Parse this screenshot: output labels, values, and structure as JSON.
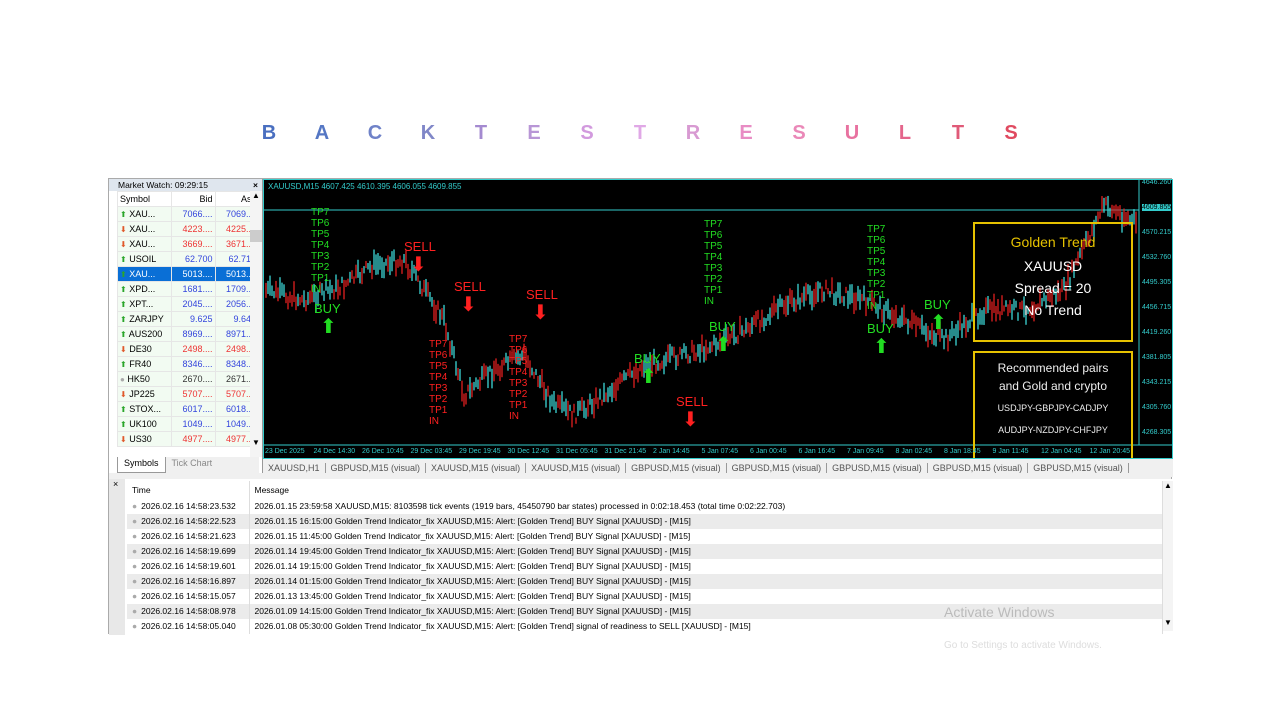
{
  "title": {
    "letters": [
      "B",
      "A",
      "C",
      "K",
      "T",
      "E",
      "S",
      "T",
      "R",
      "E",
      "S",
      "U",
      "L",
      "T",
      "S"
    ],
    "colors": [
      "#4a6fc0",
      "#5577c4",
      "#6f82c8",
      "#8087c8",
      "#a48ad0",
      "#b896d6",
      "#d29ade",
      "#e0a8e6",
      "#d89ad2",
      "#e88cc4",
      "#ea88b8",
      "#e872a0",
      "#e4668c",
      "#e05a78",
      "#e04a60"
    ]
  },
  "market_watch": {
    "title": "Market Watch: 09:29:15",
    "close": "×",
    "headers": [
      "Symbol",
      "Bid",
      "Ask"
    ],
    "rows": [
      {
        "symbol": "XAU...",
        "bid": "7066....",
        "ask": "7069....",
        "dir": "up",
        "color": "blue"
      },
      {
        "symbol": "XAU...",
        "bid": "4223....",
        "ask": "4225....",
        "dir": "dn",
        "color": "red"
      },
      {
        "symbol": "XAU...",
        "bid": "3669....",
        "ask": "3671....",
        "dir": "dn",
        "color": "red"
      },
      {
        "symbol": "USOIL",
        "bid": "62.700",
        "ask": "62.713",
        "dir": "up",
        "color": "blue"
      },
      {
        "symbol": "XAU...",
        "bid": "5013....",
        "ask": "5013....",
        "dir": "up",
        "color": "blue",
        "selected": true
      },
      {
        "symbol": "XPD...",
        "bid": "1681....",
        "ask": "1709....",
        "dir": "up",
        "color": "blue"
      },
      {
        "symbol": "XPT...",
        "bid": "2045....",
        "ask": "2056....",
        "dir": "up",
        "color": "blue"
      },
      {
        "symbol": "ZARJPY",
        "bid": "9.625",
        "ask": "9.643",
        "dir": "up",
        "color": "blue"
      },
      {
        "symbol": "AUS200",
        "bid": "8969....",
        "ask": "8971....",
        "dir": "up",
        "color": "blue"
      },
      {
        "symbol": "DE30",
        "bid": "2498....",
        "ask": "2498....",
        "dir": "dn",
        "color": "red"
      },
      {
        "symbol": "FR40",
        "bid": "8346....",
        "ask": "8348....",
        "dir": "up",
        "color": "blue"
      },
      {
        "symbol": "HK50",
        "bid": "2670....",
        "ask": "2671....",
        "dir": "nt",
        "color": "blk"
      },
      {
        "symbol": "JP225",
        "bid": "5707....",
        "ask": "5707....",
        "dir": "dn",
        "color": "red"
      },
      {
        "symbol": "STOX...",
        "bid": "6017....",
        "ask": "6018....",
        "dir": "up",
        "color": "blue"
      },
      {
        "symbol": "UK100",
        "bid": "1049....",
        "ask": "1049....",
        "dir": "up",
        "color": "blue"
      },
      {
        "symbol": "US30",
        "bid": "4977....",
        "ask": "4977....",
        "dir": "dn",
        "color": "red"
      }
    ],
    "tabs": [
      "Symbols",
      "Tick Chart"
    ]
  },
  "chart": {
    "header": "XAUUSD,M15  4607.425 4610.395 4606.055 4609.855",
    "price_axis": [
      "4646.260",
      "4609.855",
      "4570.215",
      "4532.760",
      "4495.305",
      "4456.715",
      "4419.260",
      "4381.805",
      "4343.215",
      "4305.760",
      "4268.305"
    ],
    "current_price": "4609.855",
    "time_axis": [
      "23 Dec 2025",
      "24 Dec 14:30",
      "26 Dec 10:45",
      "29 Dec 03:45",
      "29 Dec 19:45",
      "30 Dec 12:45",
      "31 Dec 05:45",
      "31 Dec 21:45",
      "2 Jan 14:45",
      "5 Jan 07:45",
      "6 Jan 00:45",
      "6 Jan 16:45",
      "7 Jan 09:45",
      "8 Jan 02:45",
      "8 Jan 18:45",
      "9 Jan 11:45",
      "12 Jan 04:45",
      "12 Jan 20:45"
    ],
    "tp_labels": [
      "TP7",
      "TP6",
      "TP5",
      "TP4",
      "TP3",
      "TP2",
      "TP1",
      "IN"
    ],
    "buy": "BUY",
    "sell": "SELL",
    "panel": {
      "title": "Golden Trend",
      "symbol": "XAUUSD",
      "spread": "Spread = 20",
      "trend": "No Trend"
    },
    "rec": {
      "line1": "Recommended pairs",
      "line2": "and Gold and crypto",
      "line3": "USDJPY-GBPJPY-CADJPY",
      "line4": "AUDJPY-NZDJPY-CHFJPY"
    },
    "colors": {
      "bull": "#3cd6d6",
      "bear": "#e02020",
      "buy": "#22dd22",
      "sell": "#ff2020",
      "panel": "#e6c200",
      "grid": "#3cc"
    }
  },
  "chart_tabs": [
    "XAUUSD,H1",
    "GBPUSD,M15 (visual)",
    "XAUUSD,M15 (visual)",
    "XAUUSD,M15 (visual)",
    "GBPUSD,M15 (visual)",
    "GBPUSD,M15 (visual)",
    "GBPUSD,M15 (visual)",
    "GBPUSD,M15 (visual)",
    "GBPUSD,M15 (visual)"
  ],
  "terminal": {
    "headers": [
      "Time",
      "Message"
    ],
    "rows": [
      [
        "2026.02.16 14:58:23.532",
        "2026.01.15 23:59:58  XAUUSD,M15: 8103598 tick events (1919 bars, 45450790 bar states) processed in 0:02:18.453 (total time 0:02:22.703)"
      ],
      [
        "2026.02.16 14:58:22.523",
        "2026.01.15 16:15:00  Golden Trend Indicator_fix XAUUSD,M15: Alert: [Golden Trend] BUY Signal [XAUUSD] - [M15]"
      ],
      [
        "2026.02.16 14:58:21.623",
        "2026.01.15 11:45:00  Golden Trend Indicator_fix XAUUSD,M15: Alert: [Golden Trend] BUY Signal [XAUUSD] - [M15]"
      ],
      [
        "2026.02.16 14:58:19.699",
        "2026.01.14 19:45:00  Golden Trend Indicator_fix XAUUSD,M15: Alert: [Golden Trend] BUY Signal [XAUUSD] - [M15]"
      ],
      [
        "2026.02.16 14:58:19.601",
        "2026.01.14 19:15:00  Golden Trend Indicator_fix XAUUSD,M15: Alert: [Golden Trend] BUY Signal [XAUUSD] - [M15]"
      ],
      [
        "2026.02.16 14:58:16.897",
        "2026.01.14 01:15:00  Golden Trend Indicator_fix XAUUSD,M15: Alert: [Golden Trend] BUY Signal [XAUUSD] - [M15]"
      ],
      [
        "2026.02.16 14:58:15.057",
        "2026.01.13 13:45:00  Golden Trend Indicator_fix XAUUSD,M15: Alert: [Golden Trend] BUY Signal [XAUUSD] - [M15]"
      ],
      [
        "2026.02.16 14:58:08.978",
        "2026.01.09 14:15:00  Golden Trend Indicator_fix XAUUSD,M15: Alert: [Golden Trend] BUY Signal [XAUUSD] - [M15]"
      ],
      [
        "2026.02.16 14:58:05.040",
        "2026.01.08 05:30:00  Golden Trend Indicator_fix XAUUSD,M15: Alert: [Golden Trend] signal of readiness to SELL [XAUUSD] - [M15]"
      ]
    ]
  },
  "watermark": {
    "line1": "Activate Windows",
    "line2": "Go to Settings to activate Windows."
  }
}
